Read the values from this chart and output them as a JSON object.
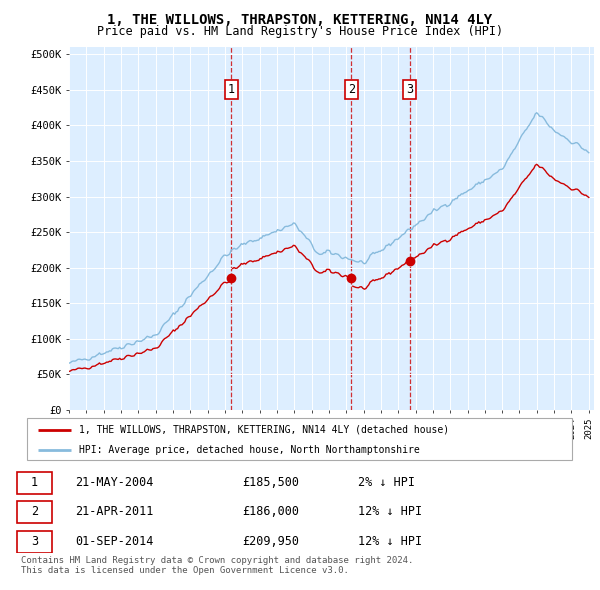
{
  "title": "1, THE WILLOWS, THRAPSTON, KETTERING, NN14 4LY",
  "subtitle": "Price paid vs. HM Land Registry's House Price Index (HPI)",
  "ylabel_ticks": [
    "£0",
    "£50K",
    "£100K",
    "£150K",
    "£200K",
    "£250K",
    "£300K",
    "£350K",
    "£400K",
    "£450K",
    "£500K"
  ],
  "y_values": [
    0,
    50000,
    100000,
    150000,
    200000,
    250000,
    300000,
    350000,
    400000,
    450000,
    500000
  ],
  "price_paid_dates": [
    2004.37,
    2011.3,
    2014.67
  ],
  "price_paid_values": [
    185500,
    186000,
    209950
  ],
  "sale_labels": [
    "1",
    "2",
    "3"
  ],
  "legend_line1": "1, THE WILLOWS, THRAPSTON, KETTERING, NN14 4LY (detached house)",
  "legend_line2": "HPI: Average price, detached house, North Northamptonshire",
  "table_rows": [
    {
      "num": "1",
      "date": "21-MAY-2004",
      "price": "£185,500",
      "hpi": "2% ↓ HPI"
    },
    {
      "num": "2",
      "date": "21-APR-2011",
      "price": "£186,000",
      "hpi": "12% ↓ HPI"
    },
    {
      "num": "3",
      "date": "01-SEP-2014",
      "price": "£209,950",
      "hpi": "12% ↓ HPI"
    }
  ],
  "footer": "Contains HM Land Registry data © Crown copyright and database right 2024.\nThis data is licensed under the Open Government Licence v3.0.",
  "line_color_red": "#cc0000",
  "line_color_blue": "#88bbdd",
  "plot_bg": "#ddeeff"
}
